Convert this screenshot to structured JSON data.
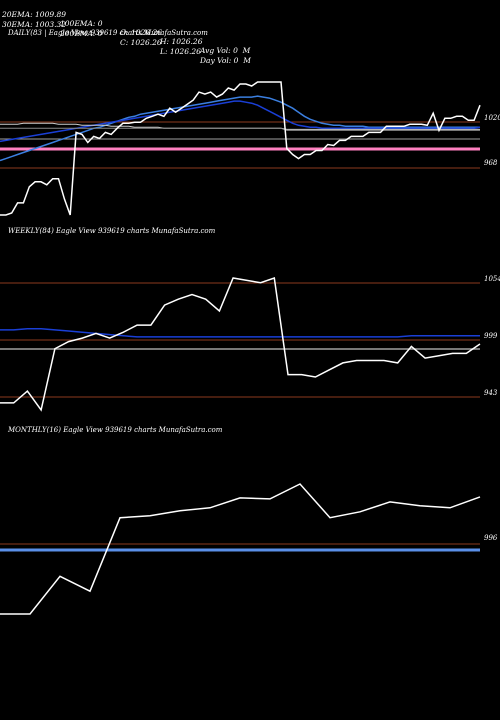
{
  "header": {
    "row1": [
      "20EMA: 1009.89",
      "100EMA: 0",
      "O: 1026.26",
      "H: 1026.26",
      "Avg Vol: 0  M"
    ],
    "row2": [
      "30EMA: 1003.32",
      "200EMA: 0",
      "C: 1026.26",
      "L: 1026.26",
      "Day Vol: 0  M"
    ]
  },
  "colors": {
    "background": "#000000",
    "price": "#ffffff",
    "ema_dark": "#1a3fd6",
    "ema_light": "#3b7fe0",
    "grid": "#8b3a1e",
    "pink_band": "#ff80c0",
    "gray_line": "#a0a0a0"
  },
  "chart_data": [
    {
      "type": "line",
      "title": "DAILY(83 | Eagle  View  939619 charts MunafaSutra.com",
      "levels": [
        1020,
        968
      ],
      "x": [
        0,
        1,
        2,
        3,
        4,
        5,
        6,
        7,
        8,
        9,
        10,
        11,
        12,
        13,
        14,
        15,
        16,
        17,
        18,
        19,
        20,
        21,
        22,
        23,
        24,
        25,
        26,
        27,
        28,
        29,
        30,
        31,
        32,
        33,
        34,
        35,
        36,
        37,
        38,
        39,
        40,
        41,
        42,
        43,
        44,
        45,
        46,
        47,
        48,
        49,
        50,
        51,
        52,
        53,
        54,
        55,
        56,
        57,
        58,
        59,
        60,
        61,
        62,
        63,
        64,
        65,
        66,
        67,
        68,
        69,
        70,
        71,
        72,
        73,
        74,
        75,
        76,
        77,
        78,
        79,
        80,
        81,
        82
      ],
      "series": [
        {
          "values": [
            912,
            912,
            914,
            924,
            924,
            940,
            945,
            945,
            942,
            948,
            948,
            928,
            912,
            994,
            992,
            984,
            990,
            988,
            994,
            992,
            998,
            1003,
            1003,
            1004,
            1004,
            1008,
            1010,
            1012,
            1010,
            1018,
            1014,
            1018,
            1022,
            1026,
            1034,
            1032,
            1034,
            1029,
            1032,
            1038,
            1036,
            1042,
            1042,
            1040,
            1044,
            1044,
            1044,
            1044,
            1044,
            978,
            972,
            968,
            972,
            972,
            976,
            976,
            982,
            981,
            986,
            986,
            990,
            990,
            990,
            994,
            994,
            994,
            1000,
            1000,
            1000,
            1000,
            1002,
            1002,
            1002,
            1001,
            1013,
            996,
            1008,
            1008,
            1010,
            1010,
            1006,
            1006,
            1021
          ]
        },
        {
          "values": [
            966,
            968,
            970,
            972,
            974,
            976,
            978,
            980,
            982,
            984,
            986,
            988,
            990,
            992,
            994,
            996,
            998,
            999,
            1001,
            1003,
            1005,
            1007,
            1009,
            1010,
            1012,
            1013,
            1014,
            1015,
            1016,
            1017,
            1018,
            1019,
            1020,
            1021,
            1022,
            1023,
            1024,
            1025,
            1026,
            1027,
            1028,
            1029,
            1029,
            1029,
            1030,
            1029,
            1028,
            1026,
            1024,
            1021,
            1018,
            1014,
            1010,
            1007,
            1005,
            1003,
            1002,
            1001,
            1001,
            1000,
            1000,
            1000,
            1000,
            999,
            999,
            999,
            999,
            999,
            999,
            999,
            999,
            999,
            999,
            999,
            999,
            999,
            999,
            999,
            999,
            999,
            999,
            999,
            999
          ]
        },
        {
          "values": [
            985,
            986,
            987,
            988,
            989,
            990,
            991,
            992,
            993,
            994,
            995,
            996,
            997,
            998,
            999,
            1000,
            1001,
            1002,
            1003,
            1004,
            1005,
            1006,
            1007,
            1008,
            1009,
            1010,
            1011,
            1012,
            1013,
            1014,
            1015,
            1016,
            1017,
            1018,
            1019,
            1020,
            1021,
            1022,
            1023,
            1024,
            1025,
            1025,
            1024,
            1023,
            1021,
            1018,
            1015,
            1012,
            1009,
            1006,
            1003,
            1001,
            1000,
            999,
            999,
            998,
            998,
            998,
            998,
            998,
            998,
            998,
            998,
            998,
            998,
            998,
            998,
            998,
            998,
            998,
            998,
            998,
            998,
            998,
            998,
            998,
            998,
            998,
            998,
            998,
            998,
            998,
            999
          ]
        },
        {
          "values": [
            1002,
            1002,
            1002,
            1002,
            1003,
            1003,
            1003,
            1003,
            1003,
            1003,
            1002,
            1002,
            1002,
            1002,
            1001,
            1001,
            1001,
            1001,
            1001,
            1000,
            1000,
            1000,
            1000,
            999,
            999,
            999,
            999,
            999,
            998,
            998,
            998,
            998,
            998,
            998,
            998,
            998,
            998,
            998,
            998,
            998,
            998,
            998,
            998,
            998,
            998,
            998,
            998,
            998,
            998,
            997,
            997,
            997,
            997,
            997,
            997,
            997,
            997,
            997,
            997,
            997,
            997,
            997,
            997,
            997,
            997,
            997,
            997,
            997,
            997,
            997,
            997,
            997,
            997,
            997,
            997,
            997,
            997,
            997,
            997,
            997,
            997,
            997,
            997
          ]
        },
        {
          "values": [
            998,
            998,
            998,
            998,
            998,
            998,
            998,
            998,
            998,
            998,
            998,
            998,
            998,
            998,
            998,
            998,
            998,
            998,
            998,
            998,
            998,
            998,
            998,
            998,
            998,
            998,
            998,
            998,
            998,
            998,
            998,
            998,
            998,
            998,
            998,
            998,
            998,
            998,
            998,
            998,
            998,
            998,
            998,
            998,
            998,
            998,
            998,
            998,
            998,
            996,
            996,
            996,
            996,
            996,
            996,
            996,
            996,
            996,
            996,
            996,
            996,
            996,
            996,
            996,
            996,
            996,
            996,
            996,
            996,
            996,
            996,
            996,
            996,
            996,
            996,
            996,
            996,
            996,
            996,
            996,
            996,
            996,
            996
          ]
        },
        {
          "values": [
            989,
            989,
            989,
            989,
            989,
            989,
            989,
            989,
            989,
            989,
            989,
            989,
            989,
            989,
            989,
            989,
            989,
            989,
            989,
            989,
            989,
            989,
            989,
            989,
            989,
            989,
            989,
            989,
            989,
            989,
            989,
            989,
            989,
            989,
            989,
            989,
            989,
            989,
            989,
            989,
            989,
            989,
            989,
            989,
            989,
            989,
            989,
            989,
            989,
            989,
            989,
            989,
            989,
            989,
            989,
            989,
            989,
            989,
            989,
            989,
            989,
            989,
            989,
            989,
            989,
            989,
            989,
            989,
            989,
            989,
            989,
            989,
            989,
            989,
            989,
            989,
            989,
            989,
            989,
            989,
            989,
            989,
            989
          ]
        }
      ]
    },
    {
      "type": "line",
      "title": "WEEKLY(84) Eagle  View  939619 charts MunafaSutra.com",
      "levels": [
        1054,
        999,
        943
      ],
      "x": [
        0,
        1,
        2,
        3,
        4,
        5,
        6,
        7,
        8,
        9,
        10,
        11,
        12,
        13,
        14,
        15,
        16,
        17,
        18,
        19,
        20,
        21,
        22,
        23,
        24,
        25,
        26,
        27,
        28,
        29,
        30,
        31,
        32,
        33,
        34,
        35
      ],
      "series": [
        {
          "values": [
            942,
            942,
            952,
            936,
            988,
            994,
            997,
            1001,
            997,
            1002,
            1008,
            1008,
            1025,
            1030,
            1034,
            1030,
            1020,
            1048,
            1046,
            1044,
            1048,
            966,
            966,
            964,
            970,
            976,
            978,
            978,
            978,
            976,
            990,
            980,
            982,
            984,
            984,
            992
          ]
        },
        {
          "values": [
            1004,
            1004,
            1005,
            1005,
            1004,
            1003,
            1002,
            1001,
            1000,
            999,
            998,
            998,
            998,
            998,
            998,
            998,
            998,
            998,
            998,
            998,
            998,
            998,
            998,
            998,
            998,
            998,
            998,
            998,
            998,
            998,
            999,
            999,
            999,
            999,
            999,
            999
          ]
        },
        {
          "values": [
            999,
            999,
            999,
            999,
            999,
            999,
            999,
            999,
            999,
            999,
            999,
            999,
            999,
            999,
            999,
            999,
            999,
            999,
            999,
            999,
            999,
            999,
            999,
            999,
            999,
            999,
            999,
            999,
            999,
            999,
            999,
            999,
            999,
            999,
            999,
            999
          ]
        },
        {
          "values": [
            983,
            983,
            983,
            983,
            983,
            983,
            983,
            983,
            983,
            983,
            983,
            983,
            983,
            983,
            983,
            983,
            983,
            983,
            983,
            983,
            983,
            983,
            983,
            983,
            983,
            983,
            983,
            983,
            983,
            983,
            983,
            983,
            983,
            983,
            983,
            983
          ]
        }
      ]
    },
    {
      "type": "line",
      "title": "MONTHLY(16) Eagle  View  939619 charts MunafaSutra.com",
      "levels": [
        996
      ],
      "x": [
        0,
        1,
        2,
        3,
        4,
        5,
        6,
        7,
        8,
        9,
        10,
        11,
        12,
        13,
        14,
        15,
        16
      ],
      "series": [
        {
          "values": [
            897,
            897,
            935,
            920,
            994,
            996,
            1001,
            1004,
            1014,
            1013,
            1028,
            994,
            1000,
            1010,
            1006,
            1004,
            1015
          ]
        },
        {
          "values": [
            990,
            990,
            990,
            990,
            990,
            990,
            990,
            990,
            990,
            990,
            990,
            990,
            990,
            990,
            990,
            990,
            990
          ]
        }
      ]
    }
  ]
}
